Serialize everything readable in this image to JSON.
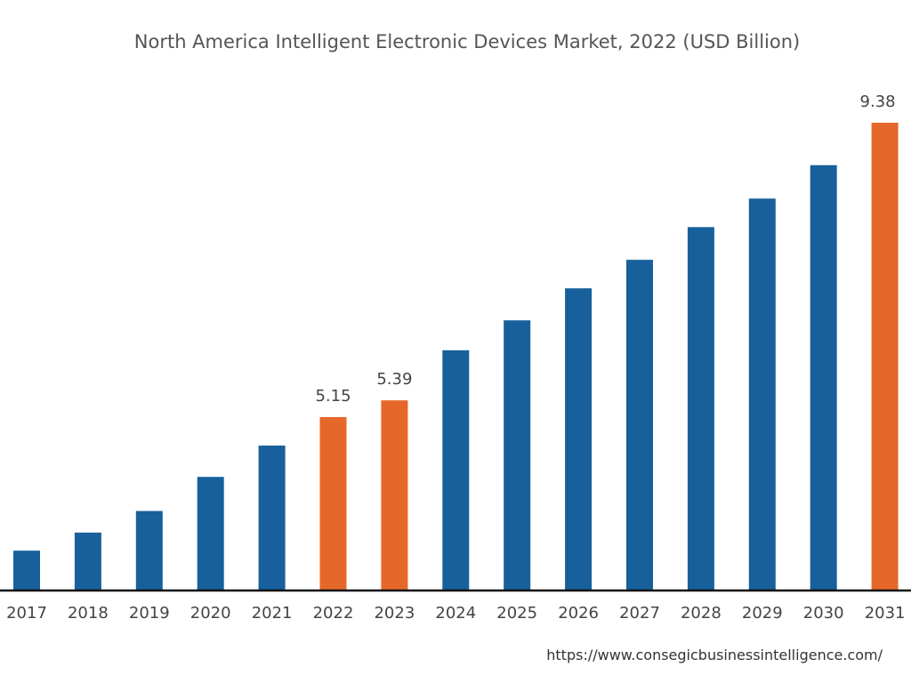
{
  "chart_data": {
    "type": "bar",
    "title": "North America Intelligent Electronic Devices Market, 2022 (USD Billion)",
    "xlabel": "",
    "ylabel": "",
    "categories": [
      "2017",
      "2018",
      "2019",
      "2020",
      "2021",
      "2022",
      "2023",
      "2024",
      "2025",
      "2026",
      "2027",
      "2028",
      "2029",
      "2030",
      "2031"
    ],
    "values": [
      3.23,
      3.49,
      3.8,
      4.29,
      4.74,
      5.15,
      5.39,
      6.11,
      6.54,
      7.0,
      7.41,
      7.88,
      8.29,
      8.77,
      9.38
    ],
    "data_labels": {
      "2022": "5.15",
      "2023": "5.39",
      "2031": "9.38"
    },
    "highlighted": [
      "2022",
      "2023",
      "2031"
    ],
    "ylim": [
      2.67,
      9.38
    ],
    "grid": false,
    "colors": {
      "default": "#17609b",
      "highlight": "#e5682a"
    }
  },
  "source_url": "https://www.consegicbusinessintelligence.com/"
}
